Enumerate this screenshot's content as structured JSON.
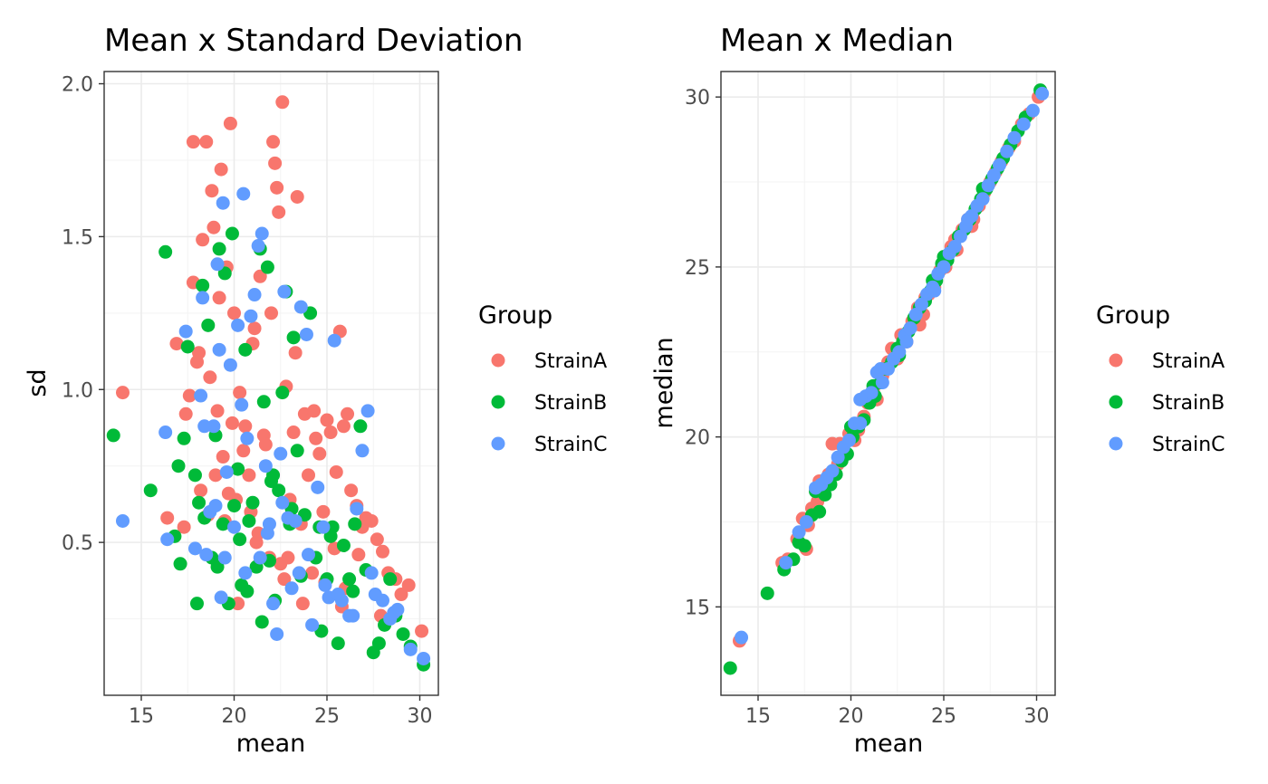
{
  "colors": {
    "StrainA": "#F8766D",
    "StrainB": "#00BA38",
    "StrainC": "#619CFF"
  },
  "chart_data": [
    {
      "type": "scatter",
      "title": "Mean x Standard Deviation",
      "xlabel": "mean",
      "ylabel": "sd",
      "xlim": [
        13.0,
        31.0
      ],
      "ylim": [
        0.0,
        2.04
      ],
      "xticks": [
        15,
        20,
        25,
        30
      ],
      "yticks": [
        0.5,
        1.0,
        1.5,
        2.0
      ],
      "ytick_labels": [
        "0.5",
        "1.0",
        "1.5",
        "2.0"
      ],
      "grid": true,
      "legend": {
        "title": "Group",
        "position": "right",
        "entries": [
          "StrainA",
          "StrainB",
          "StrainC"
        ]
      },
      "series": [
        {
          "name": "StrainA",
          "x": [
            14.0,
            16.4,
            16.9,
            17.4,
            17.6,
            17.8,
            17.8,
            18.0,
            18.2,
            18.3,
            18.5,
            18.6,
            18.8,
            18.9,
            19.0,
            19.1,
            19.2,
            19.3,
            19.5,
            19.6,
            19.8,
            19.9,
            20.0,
            20.1,
            20.3,
            20.5,
            20.8,
            21.0,
            21.2,
            21.4,
            21.6,
            21.9,
            22.1,
            22.2,
            22.4,
            22.5,
            22.6,
            22.8,
            23.0,
            23.2,
            23.4,
            23.6,
            23.8,
            24.0,
            24.3,
            24.6,
            24.8,
            25.0,
            25.2,
            25.5,
            25.7,
            25.9,
            26.1,
            26.3,
            26.6,
            26.9,
            27.1,
            27.4,
            27.7,
            28.0,
            28.3,
            28.7,
            29.0,
            29.4,
            30.1,
            22.9,
            22.3,
            22.0,
            21.1,
            20.6,
            19.4,
            18.7,
            18.1,
            24.4,
            25.4,
            26.0,
            23.3,
            21.7,
            20.9,
            24.9,
            26.7,
            27.9,
            23.7,
            22.7,
            21.3,
            19.7,
            17.3,
            25.8,
            24.2,
            20.2
          ],
          "y": [
            0.99,
            0.58,
            1.15,
            0.92,
            0.98,
            1.35,
            1.81,
            1.09,
            0.67,
            1.49,
            1.81,
            0.59,
            1.65,
            1.53,
            0.72,
            0.93,
            1.3,
            1.72,
            0.57,
            1.4,
            1.87,
            0.89,
            1.25,
            0.64,
            0.99,
            0.8,
            0.72,
            1.15,
            0.5,
            1.37,
            0.85,
            0.45,
            1.81,
            1.74,
            1.58,
            0.43,
            1.94,
            1.01,
            0.64,
            0.86,
            1.63,
            0.56,
            0.92,
            0.72,
            0.93,
            0.79,
            0.6,
            0.9,
            0.86,
            0.73,
            1.19,
            0.88,
            0.92,
            0.67,
            0.62,
            0.55,
            0.58,
            0.57,
            0.51,
            0.47,
            0.4,
            0.38,
            0.33,
            0.36,
            0.21,
            0.45,
            1.66,
            1.25,
            1.2,
            0.88,
            0.78,
            1.04,
            1.12,
            0.84,
            0.48,
            0.35,
            1.12,
            0.82,
            0.6,
            0.37,
            0.46,
            0.26,
            0.3,
            0.38,
            0.53,
            0.66,
            0.55,
            0.29,
            0.4,
            0.3
          ]
        },
        {
          "name": "StrainB",
          "x": [
            13.5,
            15.5,
            16.3,
            16.8,
            17.0,
            17.3,
            17.5,
            17.9,
            18.1,
            18.3,
            18.4,
            18.6,
            18.8,
            19.0,
            19.2,
            19.4,
            19.5,
            19.7,
            19.9,
            20.0,
            20.2,
            20.4,
            20.6,
            20.8,
            21.0,
            21.2,
            21.4,
            21.6,
            21.8,
            22.0,
            22.2,
            22.4,
            22.6,
            22.8,
            23.0,
            23.2,
            23.4,
            23.6,
            23.8,
            24.1,
            24.4,
            24.7,
            25.0,
            25.3,
            25.6,
            25.9,
            26.2,
            26.5,
            26.8,
            27.1,
            27.5,
            27.8,
            28.1,
            28.4,
            28.7,
            29.1,
            29.5,
            30.2,
            21.5,
            20.7,
            19.1,
            23.1,
            24.6,
            22.1,
            18.0,
            17.1,
            26.4,
            25.2,
            21.9,
            20.3
          ],
          "y": [
            0.85,
            0.67,
            1.45,
            0.52,
            0.75,
            0.84,
            1.14,
            0.72,
            0.63,
            1.34,
            0.58,
            1.21,
            0.45,
            0.85,
            1.46,
            0.56,
            1.38,
            0.3,
            1.51,
            0.62,
            0.74,
            0.36,
            1.13,
            0.57,
            0.63,
            0.42,
            1.46,
            0.96,
            1.4,
            0.7,
            0.31,
            0.67,
            0.99,
            1.32,
            0.56,
            1.17,
            0.8,
            0.39,
            0.59,
            1.25,
            0.45,
            0.21,
            0.38,
            0.55,
            0.17,
            0.49,
            0.38,
            0.56,
            0.88,
            0.41,
            0.14,
            0.17,
            0.23,
            0.38,
            0.26,
            0.2,
            0.16,
            0.1,
            0.24,
            0.34,
            0.42,
            0.61,
            0.55,
            0.72,
            0.3,
            0.43,
            0.34,
            0.52,
            0.44,
            0.51
          ]
        },
        {
          "name": "StrainC",
          "x": [
            14.0,
            16.3,
            16.4,
            17.4,
            17.9,
            18.2,
            18.3,
            18.5,
            18.7,
            18.9,
            19.1,
            19.2,
            19.4,
            19.5,
            19.6,
            19.8,
            20.0,
            20.2,
            20.4,
            20.5,
            20.7,
            20.9,
            21.1,
            21.3,
            21.5,
            21.7,
            21.9,
            22.1,
            22.3,
            22.5,
            22.7,
            22.9,
            23.1,
            23.3,
            23.6,
            23.9,
            24.2,
            24.5,
            24.8,
            25.1,
            25.4,
            25.8,
            26.2,
            26.6,
            26.9,
            27.2,
            27.6,
            28.0,
            28.4,
            28.8,
            29.5,
            30.2,
            19.3,
            20.6,
            21.4,
            22.6,
            23.5,
            24.0,
            24.9,
            25.6,
            26.4,
            27.4,
            28.6,
            21.8,
            19.0,
            18.4
          ],
          "y": [
            0.57,
            0.86,
            0.51,
            1.19,
            0.48,
            0.98,
            1.3,
            0.46,
            0.6,
            0.88,
            1.41,
            1.13,
            1.61,
            0.45,
            0.73,
            1.08,
            0.55,
            1.21,
            0.95,
            1.64,
            0.84,
            1.24,
            1.31,
            1.47,
            1.51,
            0.75,
            0.56,
            0.3,
            0.2,
            0.79,
            1.32,
            0.58,
            0.35,
            0.57,
            1.27,
            1.18,
            0.23,
            0.68,
            0.55,
            0.32,
            1.16,
            0.31,
            0.26,
            0.61,
            0.8,
            0.93,
            0.33,
            0.31,
            0.25,
            0.28,
            0.15,
            0.12,
            0.32,
            0.4,
            0.45,
            0.63,
            0.4,
            0.46,
            0.36,
            0.33,
            0.26,
            0.4,
            0.27,
            0.53,
            0.62,
            0.88
          ]
        }
      ]
    },
    {
      "type": "scatter",
      "title": "Mean x Median",
      "xlabel": "mean",
      "ylabel": "median",
      "xlim": [
        13.0,
        31.0
      ],
      "ylim": [
        12.4,
        30.75
      ],
      "xticks": [
        15,
        20,
        25,
        30
      ],
      "yticks": [
        15,
        20,
        25,
        30
      ],
      "ytick_labels": [
        "15",
        "20",
        "25",
        "30"
      ],
      "grid": true,
      "legend": {
        "title": "Group",
        "position": "right",
        "entries": [
          "StrainA",
          "StrainB",
          "StrainC"
        ]
      },
      "series": [
        {
          "name": "StrainA",
          "x": [
            14.0,
            16.3,
            16.6,
            17.1,
            17.4,
            17.7,
            17.9,
            18.2,
            18.5,
            18.8,
            19.0,
            19.3,
            19.6,
            19.9,
            20.1,
            20.4,
            20.7,
            20.9,
            21.2,
            21.4,
            21.7,
            22.0,
            22.2,
            22.5,
            22.8,
            23.0,
            23.3,
            23.6,
            23.9,
            24.2,
            24.5,
            24.8,
            25.1,
            25.4,
            25.7,
            26.0,
            26.3,
            26.6,
            26.9,
            27.2,
            27.5,
            27.8,
            28.1,
            28.5,
            28.8,
            29.2,
            29.6,
            30.1,
            18.3,
            21.0,
            23.7,
            26.5,
            19.4,
            22.7,
            25.6,
            17.6,
            20.2,
            24.0
          ],
          "y": [
            14.0,
            16.3,
            16.4,
            17.0,
            17.6,
            17.4,
            17.9,
            18.1,
            18.4,
            18.9,
            19.8,
            19.2,
            19.5,
            20.1,
            20.3,
            20.2,
            20.6,
            21.0,
            21.4,
            21.1,
            21.8,
            22.2,
            22.6,
            22.3,
            23.0,
            22.8,
            23.4,
            23.8,
            23.6,
            24.2,
            24.4,
            24.9,
            25.0,
            25.6,
            25.5,
            26.1,
            26.4,
            26.4,
            26.8,
            27.2,
            27.5,
            27.8,
            28.1,
            28.5,
            28.7,
            29.2,
            29.5,
            30.0,
            18.7,
            21.1,
            23.3,
            26.2,
            19.8,
            23.0,
            25.8,
            16.7,
            19.9,
            24.1
          ]
        },
        {
          "name": "StrainB",
          "x": [
            13.5,
            15.5,
            16.4,
            16.9,
            17.2,
            17.5,
            17.9,
            18.3,
            18.6,
            18.9,
            19.2,
            19.5,
            19.8,
            20.1,
            20.4,
            20.7,
            21.0,
            21.3,
            21.6,
            21.9,
            22.2,
            22.5,
            22.8,
            23.1,
            23.4,
            23.7,
            24.0,
            24.3,
            24.6,
            24.9,
            25.2,
            25.5,
            25.8,
            26.1,
            26.4,
            26.7,
            27.0,
            27.3,
            27.6,
            27.9,
            28.2,
            28.6,
            29.0,
            29.4,
            30.2,
            18.1,
            21.2,
            24.4,
            27.1,
            20.0,
            22.6,
            25.0
          ],
          "y": [
            13.2,
            15.4,
            16.1,
            16.4,
            16.9,
            16.8,
            17.7,
            17.8,
            18.3,
            18.6,
            18.9,
            19.3,
            19.5,
            20.0,
            20.3,
            20.5,
            21.0,
            21.2,
            21.6,
            22.0,
            22.2,
            22.6,
            22.8,
            23.1,
            23.5,
            23.8,
            24.0,
            24.3,
            24.6,
            25.1,
            25.2,
            25.5,
            25.9,
            26.1,
            26.4,
            26.7,
            27.0,
            27.3,
            27.6,
            27.9,
            28.2,
            28.6,
            29.0,
            29.4,
            30.2,
            18.4,
            21.5,
            24.6,
            27.3,
            20.3,
            22.4,
            25.3
          ]
        },
        {
          "name": "StrainC",
          "x": [
            14.1,
            16.5,
            17.2,
            17.6,
            18.1,
            18.4,
            18.7,
            19.0,
            19.3,
            19.6,
            19.9,
            20.2,
            20.5,
            20.8,
            21.1,
            21.4,
            21.7,
            22.0,
            22.3,
            22.6,
            22.9,
            23.2,
            23.5,
            23.8,
            24.1,
            24.4,
            24.7,
            25.0,
            25.3,
            25.6,
            25.9,
            26.2,
            26.5,
            26.8,
            27.1,
            27.4,
            27.7,
            28.0,
            28.4,
            28.8,
            29.3,
            29.8,
            30.3,
            20.5,
            21.6,
            23.0,
            24.5,
            26.3
          ],
          "y": [
            14.1,
            16.3,
            17.2,
            17.5,
            18.5,
            18.6,
            18.8,
            19.0,
            19.4,
            19.7,
            19.9,
            20.4,
            20.4,
            21.2,
            21.3,
            21.9,
            21.6,
            22.0,
            22.3,
            22.5,
            23.0,
            23.2,
            23.6,
            23.9,
            24.2,
            24.4,
            24.8,
            25.0,
            25.4,
            25.6,
            25.9,
            26.2,
            26.5,
            26.8,
            27.0,
            27.4,
            27.7,
            28.0,
            28.4,
            28.8,
            29.2,
            29.6,
            30.1,
            21.1,
            22.0,
            22.8,
            24.3,
            26.4
          ]
        }
      ]
    }
  ]
}
